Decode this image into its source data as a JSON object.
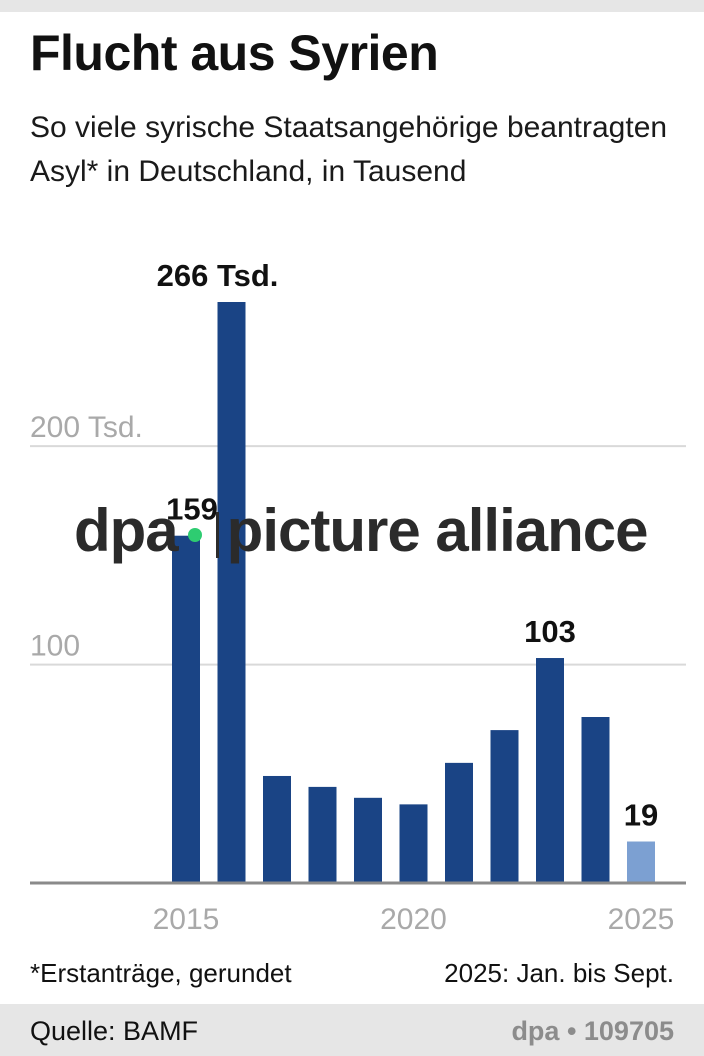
{
  "header": {
    "title": "Flucht aus Syrien",
    "subtitle": "So viele syrische Staatsangehörige beantragten Asyl* in Deutschland, in Tausend"
  },
  "chart_data": {
    "type": "bar",
    "title": "Flucht aus Syrien",
    "ylabel": "Tausend",
    "ylim": [
      0,
      266
    ],
    "yticks": [
      {
        "value": 100,
        "label": "100"
      },
      {
        "value": 200,
        "label": "200 Tsd."
      }
    ],
    "xticks": [
      {
        "year": 2015,
        "label": "2015"
      },
      {
        "year": 2020,
        "label": "2020"
      },
      {
        "year": 2025,
        "label": "2025"
      }
    ],
    "x": [
      2015,
      2016,
      2017,
      2018,
      2019,
      2020,
      2021,
      2022,
      2023,
      2024,
      2025
    ],
    "values": [
      159,
      266,
      49,
      44,
      39,
      36,
      55,
      70,
      103,
      76,
      19
    ],
    "data_labels": [
      {
        "year": 2015,
        "label": "159"
      },
      {
        "year": 2016,
        "label": "266 Tsd."
      },
      {
        "year": 2023,
        "label": "103"
      },
      {
        "year": 2025,
        "label": "19"
      }
    ],
    "colors": {
      "bar": "#1a4485",
      "partial_bar": "#7ca0d2",
      "grid": "#d9d9d9",
      "axis": "#8a8a8a",
      "tick": "#a9a9a9"
    },
    "partial_year": 2025
  },
  "notes": {
    "footnote": "*Erstanträge, gerundet",
    "period": "2025: Jan. bis Sept."
  },
  "footer": {
    "source": "Quelle: BAMF",
    "credit": "dpa • 109705"
  },
  "watermark": {
    "left": "dpa",
    "right": "picture alliance"
  }
}
